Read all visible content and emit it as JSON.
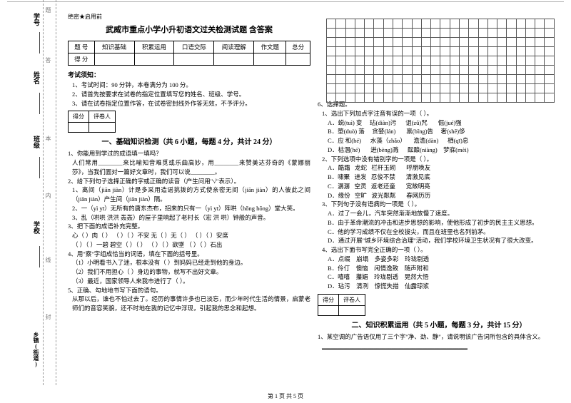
{
  "margin": {
    "labels": [
      "学号",
      "姓名",
      "班级",
      "学校",
      "乡镇(街道)"
    ],
    "dash_labels": [
      "题",
      "答",
      "本",
      "内",
      "线",
      "封"
    ]
  },
  "tag": "绝密★启用前",
  "title": "武威市重点小学小升初语文过关检测试题 含答案",
  "score_table": {
    "row1": [
      "题  号",
      "知识基础",
      "积累运用",
      "口语交际",
      "阅读理解",
      "作文题",
      "总分"
    ],
    "row2": [
      "得  分",
      "",
      "",
      "",
      "",
      "",
      ""
    ]
  },
  "notice_heading": "考试须知：",
  "notices": [
    "1、考试时间：90 分钟，本卷满分为 100 分。",
    "2、请首先按要求在试卷的指定位置填写您的姓名、班级、学号。",
    "3、请在试卷指定位置作答，在试卷密封线外作答无效，不予评分。"
  ],
  "scorebox": {
    "c1": "得分",
    "c2": "评卷人"
  },
  "section1_title": "一、基础知识检测（共 6 小题，每题 4 分，共计 24 分）",
  "q1": "1、你能用到学过的成语填一填吗？",
  "q1_body": "人们常用________来比喻知音难觅或乐曲高妙，用________来赞美达芬奇的《蒙娜丽莎》，当我们面对一篇好文章时，我们可以说________。",
  "q2": "2、给下列句子选择正确的字或正确的读音（产生问用\"√\"表示）。",
  "q2_1": "1、离间（jiān  jiàn）计是多采用造谣挑拨的方式使亲密无间（jiān  jiàn）的人彼此之间（jiān  jiàn）产生间（jiān  jiàn）隔。",
  "q2_2": "2、一（yì  yī）无所有的唐东杰布，招来的只有一（yì  yī）阵哄（hǒng  hōng）堂大笑。",
  "q2_3": "3、乱（哄哄  洪洪  轰轰）的屋子里响起了老村长（宏  洪  哄）钟般的声音。",
  "q3": "3、把下面的成语补充完整。",
  "q3_1": "心（   ）肉（   ）  （   ）（   ）不安  无（   ）无（   ）  （   ）（   ）安席",
  "q3_2": "（   ）（   ）一碧  碧空（   ）（   ）  （   ）（   ）欲墜  （   ）（   ）石出",
  "q4": "4、用\"察\"字组成恰当的词语，填在下面的括号里。",
  "q4_1": "（1）小明看书入了迷，根本没有（     ）到妈妈已经走到他的身边。",
  "q4_2": "（2）我们不用担心（     ）身边的事物，就写不出好文章。",
  "q4_3": "（3）最近，国家领导人来我市进行了（     ）。",
  "q5": "5、正确、勾地地书写下面的语句。",
  "q5_body": "从那以后，谁也不怕过去了。经历的事情许多也已淡忘，而少年时代生活的情景，启蒙老师们的音容笑貌，还不时地在我的记忆中浮现，引起我的思念和起想。",
  "grid": {
    "cols": 24,
    "rows": 9
  },
  "q6": "6、选择题。",
  "q6_1": "1、选出下列加点字注音有误的一项（   ）。",
  "q6_1_opts": "A．蜕(tuì) 变     玷(diàn)污      诅(zǔ)咒       倔(jué)强\nB．堕(duò) 落     贪婪(lán)       禀(bǐng)告     奢(shē)侈\nC．应 和(hé)      水藻（zhǎo）     澹澹(dàn)      栖(qī)息\nD．枯涸(hé)       迸(bèng)溅      酝酿(niàng)    梦寐(mèi)",
  "q6_2": "2、下列选项中没有错别字的一项是（   ）。",
  "q6_2_opts": "A．酷霜   龙蛇   栏杆玉砌       呼朋唤友\nB．啸聚   进发   忍俊不禁       清激见底\nC．潺潺   空灵   返老还童       宽敞明亮\nD．缘份   空旷   波光粼粼       春网历历",
  "q6_3": "3、下列句子没有语病的一项是（   ）。",
  "q6_3_opts": "A．过了一会儿，汽车突然渐渐地放慢了速度。\nB．由于革命潮流的冲击和进步思想的影响，使他形成了初步的民主主义思想。\nC．他的学习成绩不仅在全校拔尖，而且在班里也名列前茅。\nD．通过开展\"城乡环境综合治理\"活动，我们学校环境卫生状况有了很大改变。",
  "q6_4": "4、选出下面书写完全正确的一项（   ）。",
  "q6_4_opts": "A．点缀    崩塌    多姿多彩    玲珑剔透\nB．伶仃    懊恼    闲情逸致    随声附和\nC．嘻嘻    攥媚    玲珑剔透    晃然大悟\nD．玷污    清洌    惊慌失措    仙露琼浆",
  "section2_title": "二、知识积累运用（共 5 小题，每题 3 分，共计 15 分）",
  "s2_q1": "1、某空调的广告语仅用了三个字\"净、劲、静\"，请说明该广告词所包含的具体含义。",
  "s2_lines": "________________________________________________",
  "footer": "第 1 页  共 5 页"
}
